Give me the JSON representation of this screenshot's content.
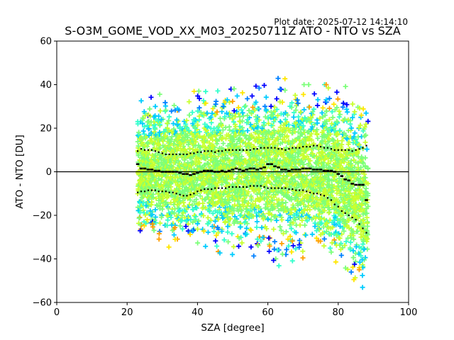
{
  "plot_date": "Plot date: 2025-07-12 14:14:10",
  "colors": {
    "scatter_colormap": [
      "#0000ff",
      "#0080ff",
      "#00ccff",
      "#33ffcc",
      "#7cff79",
      "#c8ff2e",
      "#ffe600",
      "#ff9f00"
    ],
    "median_line": "#000000",
    "percentile_markers": "#000000",
    "zero_line": "#000000"
  },
  "chart_data": {
    "type": "scatter",
    "title": "S-O3M_GOME_VOD_XX_M03_20250711Z ATO - NTO vs SZA",
    "xlabel": "SZA [degree]",
    "ylabel": "ATO - NTO [DU]",
    "xlim": [
      0,
      100
    ],
    "ylim": [
      -60,
      60
    ],
    "xticks": [
      "0",
      "20",
      "40",
      "60",
      "80",
      "100"
    ],
    "yticks": [
      "60",
      "40",
      "20",
      "0",
      "−20",
      "−40",
      "−60"
    ],
    "grid": false,
    "legend": "none",
    "reference_line": {
      "y": 0
    },
    "scatter_extent": {
      "x_range": [
        23,
        88.5
      ],
      "upper_edge": {
        "x": [
          23,
          30,
          40,
          50,
          60,
          65,
          70,
          75,
          80,
          85,
          88.5
        ],
        "y": [
          32,
          36,
          37,
          38,
          40,
          45,
          40,
          40,
          40,
          38,
          30
        ]
      },
      "lower_edge": {
        "x": [
          23,
          30,
          40,
          50,
          60,
          65,
          70,
          75,
          80,
          85,
          88.5
        ],
        "y": [
          -30,
          -37,
          -36,
          -38,
          -40,
          -45,
          -40,
          -42,
          -45,
          -58,
          -60
        ]
      }
    },
    "series": [
      {
        "name": "",
        "role": "median",
        "x": [
          23,
          24,
          25,
          26,
          27,
          28,
          29,
          30,
          31,
          32,
          33,
          34,
          35,
          36,
          37,
          38,
          39,
          40,
          41,
          42,
          43,
          44,
          45,
          46,
          47,
          48,
          49,
          50,
          51,
          52,
          53,
          54,
          55,
          56,
          57,
          58,
          59,
          60,
          61,
          62,
          63,
          64,
          65,
          66,
          67,
          68,
          69,
          70,
          71,
          72,
          73,
          74,
          75,
          76,
          77,
          78,
          79,
          80,
          81,
          82,
          83,
          84,
          85,
          86,
          87,
          88
        ],
        "y": [
          3.5,
          1.5,
          1.5,
          1,
          1,
          0.5,
          0.5,
          0,
          0,
          0,
          0,
          0,
          -0.5,
          -1,
          -1,
          -1.5,
          -1,
          -0.5,
          0,
          0.5,
          0.5,
          0.5,
          0,
          0,
          0.5,
          0,
          0.5,
          1,
          1.5,
          1,
          0.5,
          1,
          1.5,
          1.5,
          1,
          1.5,
          2,
          3.5,
          3.5,
          2.5,
          2,
          1,
          1,
          0.5,
          1,
          1,
          1,
          1.5,
          1.5,
          1.5,
          1,
          1,
          1,
          0.5,
          0.5,
          0.5,
          0,
          -1,
          -2,
          -3.5,
          -4,
          -5.5,
          -6,
          -6,
          -6,
          -13
        ]
      },
      {
        "name": "",
        "role": "upper_percentile",
        "x": [
          23,
          24,
          25,
          26,
          27,
          28,
          29,
          30,
          31,
          32,
          33,
          34,
          35,
          36,
          37,
          38,
          39,
          40,
          41,
          42,
          43,
          44,
          45,
          46,
          47,
          48,
          49,
          50,
          51,
          52,
          53,
          54,
          55,
          56,
          57,
          58,
          59,
          60,
          61,
          62,
          63,
          64,
          65,
          66,
          67,
          68,
          69,
          70,
          71,
          72,
          73,
          74,
          75,
          76,
          77,
          78,
          79,
          80,
          81,
          82,
          83,
          84,
          85,
          86,
          87,
          88
        ],
        "y": [
          9.5,
          10.5,
          10,
          10,
          10,
          9.5,
          9,
          8.5,
          8,
          8,
          8,
          8,
          8,
          8,
          8,
          8.5,
          8.5,
          9,
          9,
          9.5,
          9.5,
          9.5,
          9,
          9.5,
          9.5,
          10,
          10,
          10,
          10,
          10,
          10,
          10,
          10,
          10.5,
          10.5,
          11,
          11,
          11,
          11,
          11,
          10.5,
          10.5,
          10,
          10.5,
          11,
          11,
          11,
          11.5,
          11.5,
          11.5,
          12,
          12,
          11.5,
          11,
          11,
          10.5,
          10,
          10,
          10,
          10,
          10,
          9.5,
          10,
          10.5,
          11,
          12
        ]
      },
      {
        "name": "",
        "role": "lower_percentile",
        "x": [
          23,
          24,
          25,
          26,
          27,
          28,
          29,
          30,
          31,
          32,
          33,
          34,
          35,
          36,
          37,
          38,
          39,
          40,
          41,
          42,
          43,
          44,
          45,
          46,
          47,
          48,
          49,
          50,
          51,
          52,
          53,
          54,
          55,
          56,
          57,
          58,
          59,
          60,
          61,
          62,
          63,
          64,
          65,
          66,
          67,
          68,
          69,
          70,
          71,
          72,
          73,
          74,
          75,
          76,
          77,
          78,
          79,
          80,
          81,
          82,
          83,
          84,
          85,
          86,
          87,
          88
        ],
        "y": [
          -9.5,
          -9,
          -9,
          -8.5,
          -8.5,
          -8.5,
          -9,
          -9,
          -9,
          -9.5,
          -9.5,
          -10,
          -10.5,
          -11,
          -11,
          -10.5,
          -10,
          -9,
          -8.5,
          -8,
          -8,
          -8,
          -7.5,
          -7.5,
          -7.5,
          -7.5,
          -7,
          -7,
          -7,
          -7,
          -7,
          -7,
          -6.5,
          -6.5,
          -6.5,
          -6.5,
          -7,
          -7.5,
          -7.5,
          -7.5,
          -7.5,
          -7.5,
          -7.5,
          -8,
          -8,
          -8.5,
          -8.5,
          -8.5,
          -9,
          -9.5,
          -10,
          -10,
          -10.5,
          -11,
          -12,
          -13,
          -15,
          -16,
          -18,
          -19,
          -20,
          -21,
          -22,
          -24,
          -26,
          -28
        ]
      }
    ]
  }
}
